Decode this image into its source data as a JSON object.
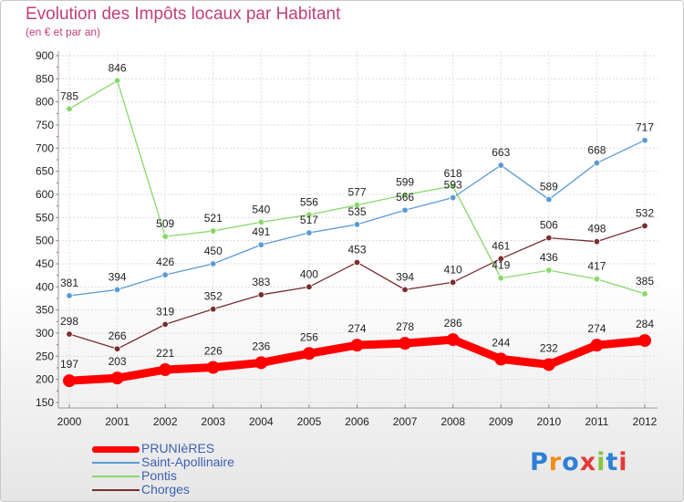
{
  "title": "Evolution des Impôts locaux par Habitant",
  "subtitle": "(en € et par an)",
  "logo_text": "Proxiti",
  "chart_data": {
    "type": "line",
    "title": "Evolution des Impôts locaux par Habitant",
    "subtitle": "(en € et par an)",
    "xlabel": "",
    "ylabel": "",
    "x": [
      "2000",
      "2001",
      "2002",
      "2003",
      "2004",
      "2005",
      "2006",
      "2007",
      "2008",
      "2009",
      "2010",
      "2011",
      "2012"
    ],
    "ylim": [
      150,
      900
    ],
    "yticks": [
      150,
      200,
      250,
      300,
      350,
      400,
      450,
      500,
      550,
      600,
      650,
      700,
      750,
      800,
      850,
      900
    ],
    "grid": true,
    "legend_position": "bottom-left",
    "series": [
      {
        "name": "PRUNIèRES",
        "color": "#ff0000",
        "values": [
          197,
          203,
          221,
          226,
          236,
          256,
          274,
          278,
          286,
          244,
          232,
          274,
          284
        ]
      },
      {
        "name": "Saint-Apollinaire",
        "color": "#5b9bd5",
        "values": [
          381,
          394,
          426,
          450,
          491,
          517,
          535,
          566,
          593,
          663,
          589,
          668,
          717
        ]
      },
      {
        "name": "Pontis",
        "color": "#86d96a",
        "values": [
          785,
          846,
          509,
          521,
          540,
          556,
          577,
          599,
          618,
          419,
          436,
          417,
          385
        ]
      },
      {
        "name": "Chorges",
        "color": "#7a2e2e",
        "values": [
          298,
          266,
          319,
          352,
          383,
          400,
          453,
          394,
          410,
          461,
          506,
          498,
          532
        ]
      }
    ]
  }
}
